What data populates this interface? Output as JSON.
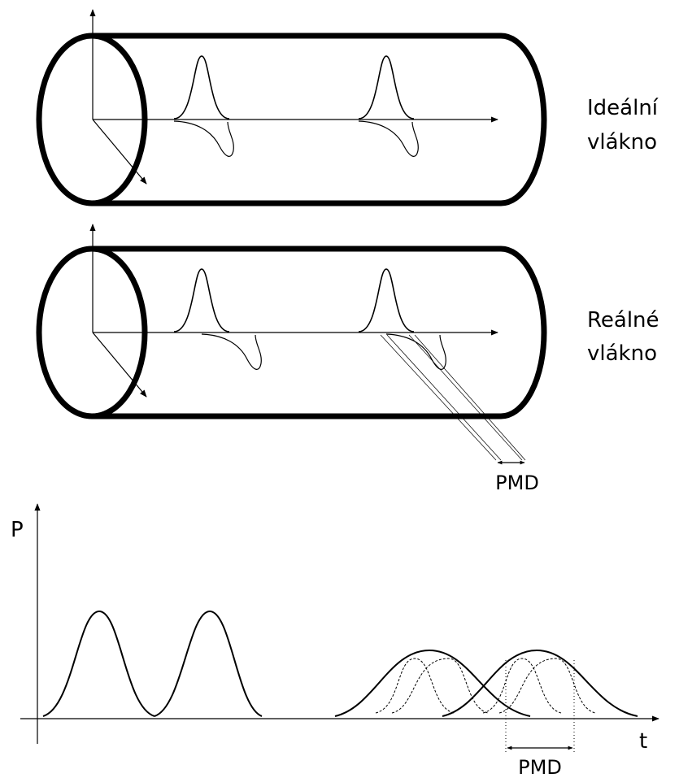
{
  "labels": {
    "fiber1": [
      "Ideální",
      "vlákno"
    ],
    "fiber2": [
      "Reálné",
      "vlákno"
    ],
    "pmd_top": "PMD",
    "axis_p": "P",
    "axis_t": "t",
    "pmd_bottom": "PMD"
  },
  "colors": {
    "stroke": "#000000",
    "background": "#ffffff"
  }
}
